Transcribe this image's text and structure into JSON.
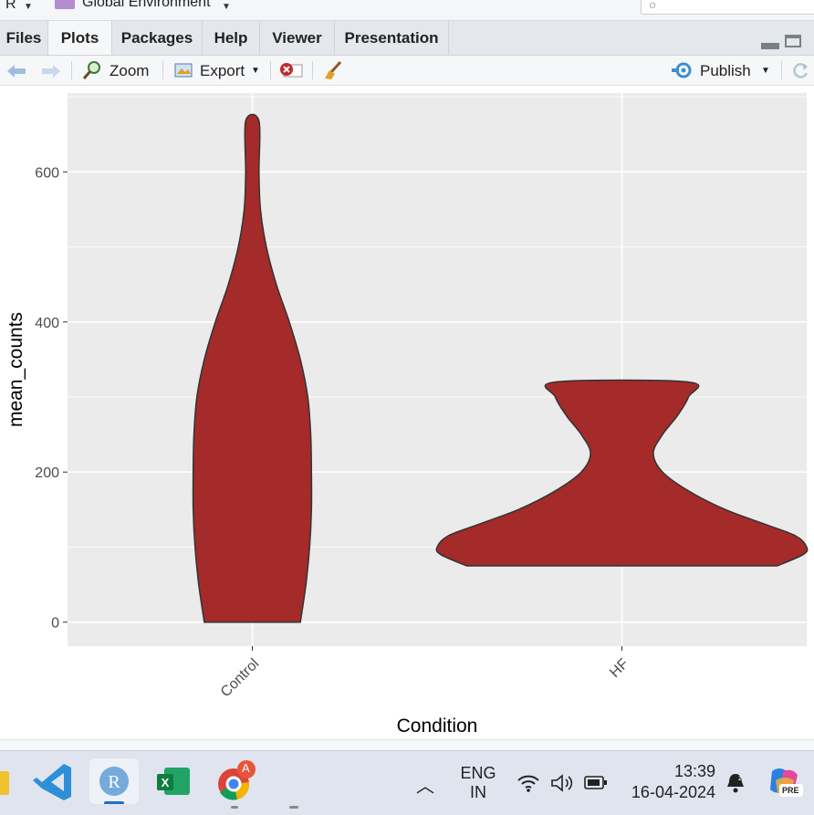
{
  "top_strip": {
    "r_selector": "R",
    "environment_label": "Global Environment"
  },
  "tabs": [
    {
      "label": "Files",
      "active": false
    },
    {
      "label": "Plots",
      "active": true
    },
    {
      "label": "Packages",
      "active": false
    },
    {
      "label": "Help",
      "active": false
    },
    {
      "label": "Viewer",
      "active": false
    },
    {
      "label": "Presentation",
      "active": false
    }
  ],
  "toolbar": {
    "zoom_label": "Zoom",
    "export_label": "Export",
    "publish_label": "Publish"
  },
  "chart_data": {
    "type": "violin",
    "xlabel": "Condition",
    "ylabel": "mean_counts",
    "categories": [
      "Control",
      "HF"
    ],
    "ylim": [
      -32,
      705
    ],
    "yticks": [
      0,
      200,
      400,
      600
    ],
    "fill_color": "#A52A2A",
    "panel_color": "#EBEBEB",
    "grid": true,
    "series": [
      {
        "category": "Control",
        "y_min": 0,
        "y_max": 668,
        "density_profile": [
          {
            "y": 0,
            "half_width": 0.13
          },
          {
            "y": 50,
            "half_width": 0.145
          },
          {
            "y": 100,
            "half_width": 0.155
          },
          {
            "y": 150,
            "half_width": 0.16
          },
          {
            "y": 200,
            "half_width": 0.16
          },
          {
            "y": 250,
            "half_width": 0.158
          },
          {
            "y": 300,
            "half_width": 0.15
          },
          {
            "y": 350,
            "half_width": 0.13
          },
          {
            "y": 400,
            "half_width": 0.1
          },
          {
            "y": 450,
            "half_width": 0.065
          },
          {
            "y": 500,
            "half_width": 0.038
          },
          {
            "y": 550,
            "half_width": 0.022
          },
          {
            "y": 600,
            "half_width": 0.018
          },
          {
            "y": 668,
            "half_width": 0.018
          }
        ]
      },
      {
        "category": "HF",
        "y_min": 75,
        "y_max": 320,
        "density_profile": [
          {
            "y": 75,
            "half_width": 0.42
          },
          {
            "y": 90,
            "half_width": 0.49
          },
          {
            "y": 100,
            "half_width": 0.5
          },
          {
            "y": 115,
            "half_width": 0.47
          },
          {
            "y": 130,
            "half_width": 0.39
          },
          {
            "y": 150,
            "half_width": 0.28
          },
          {
            "y": 175,
            "half_width": 0.18
          },
          {
            "y": 200,
            "half_width": 0.11
          },
          {
            "y": 225,
            "half_width": 0.085
          },
          {
            "y": 250,
            "half_width": 0.11
          },
          {
            "y": 275,
            "half_width": 0.15
          },
          {
            "y": 300,
            "half_width": 0.18
          },
          {
            "y": 320,
            "half_width": 0.18
          }
        ]
      }
    ]
  },
  "taskbar": {
    "lang_line1": "ENG",
    "lang_line2": "IN",
    "time": "13:39",
    "date": "16-04-2024",
    "chrome_badge": "A",
    "copilot_badge": "PRE"
  }
}
